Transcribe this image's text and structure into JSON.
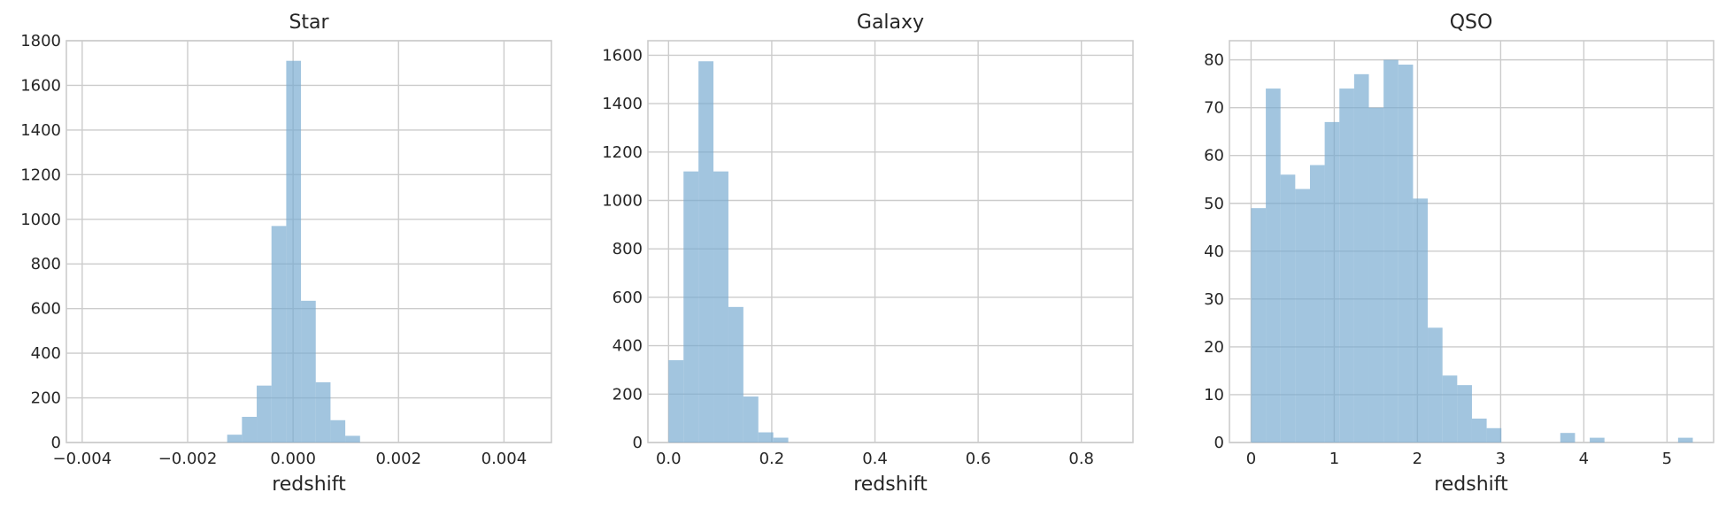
{
  "chart_data": [
    {
      "type": "bar",
      "title": "Star",
      "xlabel": "redshift",
      "ylabel": "",
      "xlim": [
        -0.0043,
        0.0049
      ],
      "ylim": [
        0,
        1800
      ],
      "xticks": [
        -0.004,
        -0.002,
        0.0,
        0.002,
        0.004
      ],
      "xtick_labels": [
        "−0.004",
        "−0.002",
        "0.000",
        "0.002",
        "0.004"
      ],
      "yticks": [
        0,
        200,
        400,
        600,
        800,
        1000,
        1200,
        1400,
        1600,
        1800
      ],
      "ytick_labels": [
        "0",
        "200",
        "400",
        "600",
        "800",
        "1000",
        "1200",
        "1400",
        "1600",
        "1800"
      ],
      "grid": true,
      "bins": [
        {
          "x0": -0.00125,
          "x1": -0.00097,
          "count": 35
        },
        {
          "x0": -0.00097,
          "x1": -0.00069,
          "count": 115
        },
        {
          "x0": -0.00069,
          "x1": -0.00041,
          "count": 255
        },
        {
          "x0": -0.00041,
          "x1": -0.00013,
          "count": 970
        },
        {
          "x0": -0.00013,
          "x1": 0.00015,
          "count": 1710
        },
        {
          "x0": 0.00015,
          "x1": 0.00043,
          "count": 635
        },
        {
          "x0": 0.00043,
          "x1": 0.00071,
          "count": 270
        },
        {
          "x0": 0.00071,
          "x1": 0.00099,
          "count": 100
        },
        {
          "x0": 0.00099,
          "x1": 0.00127,
          "count": 30
        }
      ]
    },
    {
      "type": "bar",
      "title": "Galaxy",
      "xlabel": "redshift",
      "ylabel": "",
      "xlim": [
        -0.04,
        0.9
      ],
      "ylim": [
        0,
        1660
      ],
      "xticks": [
        0.0,
        0.2,
        0.4,
        0.6,
        0.8
      ],
      "xtick_labels": [
        "0.0",
        "0.2",
        "0.4",
        "0.6",
        "0.8"
      ],
      "yticks": [
        0,
        200,
        400,
        600,
        800,
        1000,
        1200,
        1400,
        1600
      ],
      "ytick_labels": [
        "0",
        "200",
        "400",
        "600",
        "800",
        "1000",
        "1200",
        "1400",
        "1600"
      ],
      "grid": true,
      "bins": [
        {
          "x0": 0.0,
          "x1": 0.029,
          "count": 340
        },
        {
          "x0": 0.029,
          "x1": 0.058,
          "count": 1120
        },
        {
          "x0": 0.058,
          "x1": 0.087,
          "count": 1575
        },
        {
          "x0": 0.087,
          "x1": 0.116,
          "count": 1120
        },
        {
          "x0": 0.116,
          "x1": 0.145,
          "count": 560
        },
        {
          "x0": 0.145,
          "x1": 0.174,
          "count": 190
        },
        {
          "x0": 0.174,
          "x1": 0.203,
          "count": 42
        },
        {
          "x0": 0.203,
          "x1": 0.232,
          "count": 20
        }
      ]
    },
    {
      "type": "bar",
      "title": "QSO",
      "xlabel": "redshift",
      "ylabel": "",
      "xlim": [
        -0.26,
        5.56
      ],
      "ylim": [
        0,
        84
      ],
      "xticks": [
        0,
        1,
        2,
        3,
        4,
        5
      ],
      "xtick_labels": [
        "0",
        "1",
        "2",
        "3",
        "4",
        "5"
      ],
      "yticks": [
        0,
        10,
        20,
        30,
        40,
        50,
        60,
        70,
        80
      ],
      "ytick_labels": [
        "0",
        "10",
        "20",
        "30",
        "40",
        "50",
        "60",
        "70",
        "80"
      ],
      "grid": true,
      "bins": [
        {
          "x0": 0.0,
          "x1": 0.177,
          "count": 49
        },
        {
          "x0": 0.177,
          "x1": 0.354,
          "count": 74
        },
        {
          "x0": 0.354,
          "x1": 0.531,
          "count": 56
        },
        {
          "x0": 0.531,
          "x1": 0.708,
          "count": 53
        },
        {
          "x0": 0.708,
          "x1": 0.885,
          "count": 58
        },
        {
          "x0": 0.885,
          "x1": 1.062,
          "count": 67
        },
        {
          "x0": 1.062,
          "x1": 1.239,
          "count": 74
        },
        {
          "x0": 1.239,
          "x1": 1.416,
          "count": 77
        },
        {
          "x0": 1.416,
          "x1": 1.593,
          "count": 70
        },
        {
          "x0": 1.593,
          "x1": 1.77,
          "count": 80
        },
        {
          "x0": 1.77,
          "x1": 1.947,
          "count": 79
        },
        {
          "x0": 1.947,
          "x1": 2.124,
          "count": 51
        },
        {
          "x0": 2.124,
          "x1": 2.301,
          "count": 24
        },
        {
          "x0": 2.301,
          "x1": 2.478,
          "count": 14
        },
        {
          "x0": 2.478,
          "x1": 2.655,
          "count": 12
        },
        {
          "x0": 2.655,
          "x1": 2.832,
          "count": 5
        },
        {
          "x0": 2.832,
          "x1": 3.009,
          "count": 3
        },
        {
          "x0": 3.717,
          "x1": 3.894,
          "count": 2
        },
        {
          "x0": 4.071,
          "x1": 4.248,
          "count": 1
        },
        {
          "x0": 5.133,
          "x1": 5.31,
          "count": 1
        }
      ]
    }
  ]
}
